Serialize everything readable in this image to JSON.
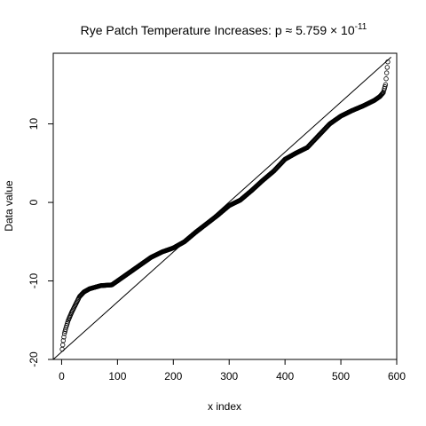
{
  "chart_data": {
    "type": "scatter",
    "title": "Rye Patch Temperature Increases: p ≈ 5.759 × 10",
    "title_exponent": "-11",
    "xlabel": "x index",
    "ylabel": "Data value",
    "xlim": [
      -15,
      600
    ],
    "ylim": [
      -20,
      19
    ],
    "x_ticks": [
      0,
      100,
      200,
      300,
      400,
      500,
      600
    ],
    "y_ticks": [
      -20,
      -10,
      0,
      10
    ],
    "x_tick_labels": [
      "0",
      "100",
      "200",
      "300",
      "400",
      "500",
      "600"
    ],
    "y_tick_labels": [
      "-20",
      "-10",
      "0",
      "10"
    ],
    "n_points": 584,
    "reference_line": {
      "from": [
        -15,
        -20
      ],
      "to": [
        590,
        18.5
      ]
    },
    "sorted_data_curve": [
      [
        1,
        -18.7
      ],
      [
        3,
        -17.6
      ],
      [
        5,
        -16.7
      ],
      [
        8,
        -15.9
      ],
      [
        12,
        -15.0
      ],
      [
        18,
        -14.0
      ],
      [
        25,
        -13.0
      ],
      [
        32,
        -12.0
      ],
      [
        40,
        -11.4
      ],
      [
        50,
        -11.0
      ],
      [
        60,
        -10.8
      ],
      [
        70,
        -10.6
      ],
      [
        90,
        -10.5
      ],
      [
        100,
        -10.0
      ],
      [
        120,
        -9.0
      ],
      [
        140,
        -8.0
      ],
      [
        160,
        -7.0
      ],
      [
        180,
        -6.3
      ],
      [
        200,
        -5.8
      ],
      [
        220,
        -5.0
      ],
      [
        240,
        -3.8
      ],
      [
        260,
        -2.7
      ],
      [
        280,
        -1.6
      ],
      [
        300,
        -0.4
      ],
      [
        320,
        0.3
      ],
      [
        340,
        1.5
      ],
      [
        360,
        2.8
      ],
      [
        380,
        4.0
      ],
      [
        400,
        5.5
      ],
      [
        420,
        6.3
      ],
      [
        440,
        7.0
      ],
      [
        460,
        8.5
      ],
      [
        480,
        10.0
      ],
      [
        500,
        11.0
      ],
      [
        520,
        11.7
      ],
      [
        540,
        12.3
      ],
      [
        560,
        13.0
      ],
      [
        570,
        13.5
      ],
      [
        576,
        14.0
      ],
      [
        580,
        15.0
      ],
      [
        582,
        16.5
      ],
      [
        584,
        17.9
      ]
    ]
  }
}
